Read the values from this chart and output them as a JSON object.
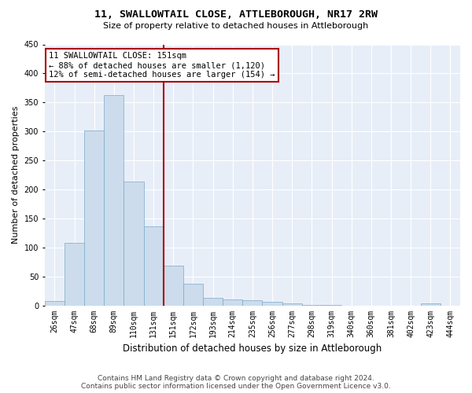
{
  "title": "11, SWALLOWTAIL CLOSE, ATTLEBOROUGH, NR17 2RW",
  "subtitle": "Size of property relative to detached houses in Attleborough",
  "xlabel": "Distribution of detached houses by size in Attleborough",
  "ylabel": "Number of detached properties",
  "footer_line1": "Contains HM Land Registry data © Crown copyright and database right 2024.",
  "footer_line2": "Contains public sector information licensed under the Open Government Licence v3.0.",
  "annotation_line1": "11 SWALLOWTAIL CLOSE: 151sqm",
  "annotation_line2": "← 88% of detached houses are smaller (1,120)",
  "annotation_line3": "12% of semi-detached houses are larger (154) →",
  "bar_color": "#ccdcec",
  "bar_edge_color": "#7aaac8",
  "property_line_color": "#aa0000",
  "annotation_box_edge_color": "#aa0000",
  "background_color": "#e8eef8",
  "grid_color": "#ffffff",
  "categories": [
    "26sqm",
    "47sqm",
    "68sqm",
    "89sqm",
    "110sqm",
    "131sqm",
    "151sqm",
    "172sqm",
    "193sqm",
    "214sqm",
    "235sqm",
    "256sqm",
    "277sqm",
    "298sqm",
    "319sqm",
    "340sqm",
    "360sqm",
    "381sqm",
    "402sqm",
    "423sqm",
    "444sqm"
  ],
  "values": [
    8,
    108,
    301,
    362,
    213,
    136,
    69,
    38,
    13,
    10,
    9,
    6,
    3,
    1,
    1,
    0,
    0,
    0,
    0,
    3,
    0
  ],
  "property_bar_index": 6,
  "ylim": [
    0,
    450
  ],
  "yticks": [
    0,
    50,
    100,
    150,
    200,
    250,
    300,
    350,
    400,
    450
  ],
  "title_fontsize": 9.5,
  "subtitle_fontsize": 8,
  "tick_fontsize": 7,
  "ylabel_fontsize": 8,
  "xlabel_fontsize": 8.5,
  "footer_fontsize": 6.5,
  "annotation_fontsize": 7.5
}
